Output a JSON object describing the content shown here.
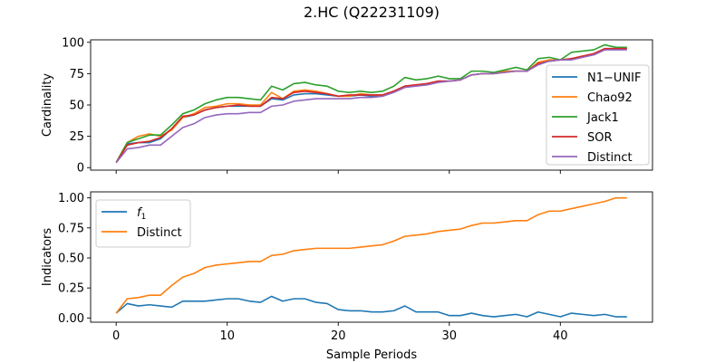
{
  "figure": {
    "title": "2.HC (Q22231109)",
    "xlabel": "Sample Periods"
  },
  "chart_data": [
    {
      "type": "line",
      "ylabel": "Cardinality",
      "xlim": [
        -2.3,
        48.3
      ],
      "ylim": [
        -2,
        102
      ],
      "xticks": [
        0,
        10,
        20,
        30,
        40
      ],
      "yticks": [
        0,
        25,
        50,
        75,
        100
      ],
      "yticklabels": [
        "0",
        "25",
        "50",
        "75",
        "100"
      ],
      "legend_loc": "right",
      "x": [
        0,
        1,
        2,
        3,
        4,
        5,
        6,
        7,
        8,
        9,
        10,
        11,
        12,
        13,
        14,
        15,
        16,
        17,
        18,
        19,
        20,
        21,
        22,
        23,
        24,
        25,
        26,
        27,
        28,
        29,
        30,
        31,
        32,
        33,
        34,
        35,
        36,
        37,
        38,
        39,
        40,
        41,
        42,
        43,
        44,
        45,
        46
      ],
      "series": [
        {
          "name": "N1−UNIF",
          "color": "#1f77b4",
          "values": [
            4,
            19,
            20,
            20,
            23,
            31,
            40,
            42,
            46,
            48,
            49,
            49,
            49,
            49,
            55,
            54,
            58,
            59,
            59,
            58,
            57,
            57,
            58,
            57,
            58,
            61,
            65,
            66,
            67,
            69,
            69,
            70,
            74,
            75,
            75,
            77,
            77,
            77,
            83,
            85,
            86,
            86,
            89,
            90,
            94,
            95,
            95
          ]
        },
        {
          "name": "Chao92",
          "color": "#ff7f0e",
          "values": [
            4,
            20,
            25,
            27,
            25,
            30,
            40,
            43,
            48,
            49,
            51,
            51,
            50,
            50,
            60,
            55,
            61,
            62,
            61,
            59,
            57,
            57,
            59,
            58,
            58,
            61,
            65,
            66,
            67,
            69,
            69,
            70,
            74,
            75,
            75,
            77,
            77,
            77,
            84,
            86,
            86,
            87,
            89,
            90,
            94,
            95,
            95
          ]
        },
        {
          "name": "Jack1",
          "color": "#2ca02c",
          "values": [
            4,
            20,
            23,
            26,
            26,
            34,
            43,
            46,
            51,
            54,
            56,
            56,
            55,
            54,
            65,
            62,
            67,
            68,
            66,
            65,
            61,
            60,
            61,
            60,
            61,
            65,
            72,
            70,
            71,
            73,
            71,
            71,
            77,
            77,
            76,
            78,
            80,
            78,
            87,
            88,
            86,
            92,
            93,
            94,
            98,
            96,
            96
          ]
        },
        {
          "name": "SOR",
          "color": "#d62728",
          "values": [
            4,
            18,
            20,
            21,
            24,
            31,
            41,
            42,
            46,
            48,
            49,
            50,
            49,
            49,
            56,
            55,
            60,
            61,
            60,
            59,
            57,
            58,
            58,
            58,
            58,
            61,
            65,
            66,
            67,
            69,
            69,
            70,
            74,
            75,
            75,
            76,
            77,
            77,
            83,
            85,
            86,
            87,
            89,
            91,
            95,
            95,
            95
          ]
        },
        {
          "name": "Distinct",
          "color": "#9467bd",
          "values": [
            4,
            15,
            16,
            18,
            18,
            25,
            32,
            35,
            40,
            42,
            43,
            43,
            44,
            44,
            49,
            50,
            53,
            54,
            55,
            55,
            55,
            55,
            56,
            56,
            57,
            60,
            64,
            65,
            66,
            68,
            69,
            70,
            74,
            75,
            75,
            76,
            77,
            77,
            82,
            85,
            86,
            86,
            88,
            90,
            94,
            94,
            94
          ]
        }
      ]
    },
    {
      "type": "line",
      "ylabel": "Indicators",
      "xlim": [
        -2.3,
        48.3
      ],
      "ylim": [
        -0.035,
        1.05
      ],
      "xticks": [
        0,
        10,
        20,
        30,
        40
      ],
      "xticklabels": [
        "0",
        "10",
        "20",
        "30",
        "40"
      ],
      "yticks": [
        0,
        0.25,
        0.5,
        0.75,
        1.0
      ],
      "yticklabels": [
        "0.00",
        "0.25",
        "0.50",
        "0.75",
        "1.00"
      ],
      "legend_loc": "upper left",
      "x": [
        0,
        1,
        2,
        3,
        4,
        5,
        6,
        7,
        8,
        9,
        10,
        11,
        12,
        13,
        14,
        15,
        16,
        17,
        18,
        19,
        20,
        21,
        22,
        23,
        24,
        25,
        26,
        27,
        28,
        29,
        30,
        31,
        32,
        33,
        34,
        35,
        36,
        37,
        38,
        39,
        40,
        41,
        42,
        43,
        44,
        45,
        46
      ],
      "series": [
        {
          "name": "f",
          "name_sub": "1",
          "color": "#1f77b4",
          "values": [
            0.04,
            0.12,
            0.1,
            0.11,
            0.1,
            0.09,
            0.14,
            0.14,
            0.14,
            0.15,
            0.16,
            0.16,
            0.14,
            0.13,
            0.18,
            0.14,
            0.16,
            0.16,
            0.13,
            0.12,
            0.07,
            0.06,
            0.06,
            0.05,
            0.05,
            0.06,
            0.1,
            0.05,
            0.05,
            0.05,
            0.02,
            0.02,
            0.04,
            0.02,
            0.01,
            0.02,
            0.03,
            0.01,
            0.05,
            0.03,
            0.01,
            0.04,
            0.03,
            0.02,
            0.03,
            0.01,
            0.01
          ]
        },
        {
          "name": "Distinct",
          "color": "#ff7f0e",
          "values": [
            0.04,
            0.16,
            0.17,
            0.19,
            0.19,
            0.27,
            0.34,
            0.37,
            0.42,
            0.44,
            0.45,
            0.46,
            0.47,
            0.47,
            0.52,
            0.53,
            0.56,
            0.57,
            0.58,
            0.58,
            0.58,
            0.58,
            0.59,
            0.6,
            0.61,
            0.64,
            0.68,
            0.69,
            0.7,
            0.72,
            0.73,
            0.74,
            0.77,
            0.79,
            0.79,
            0.8,
            0.81,
            0.81,
            0.86,
            0.89,
            0.89,
            0.91,
            0.93,
            0.95,
            0.97,
            1.0,
            1.0
          ]
        }
      ]
    }
  ]
}
